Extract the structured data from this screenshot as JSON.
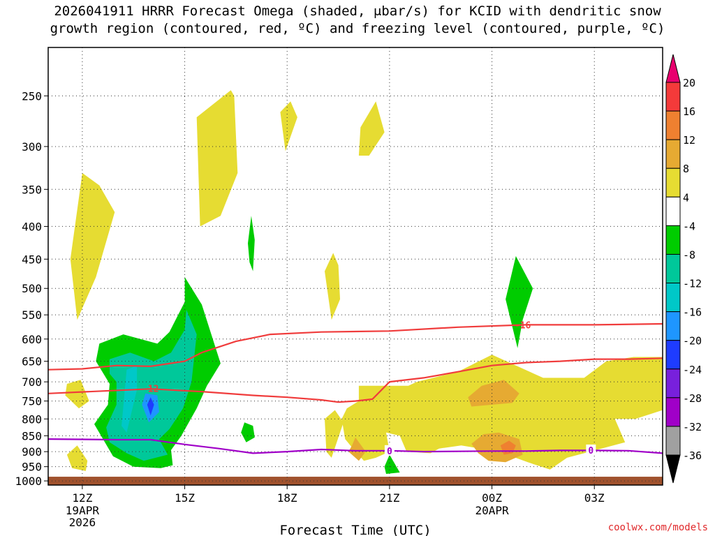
{
  "title": {
    "line1": "2026041911 HRRR Forecast Omega (shaded, μbar/s) for KCID with dendritic snow",
    "line2": "growth region (contoured, red, ºC) and freezing level (contoured, purple, ºC)"
  },
  "credit": "coolwx.com/models",
  "chart_data": {
    "type": "time-height cross section",
    "xlabel": "Forecast Time (UTC)",
    "ylabel": "",
    "x_ticks": [
      {
        "label": "12Z",
        "sub": [
          "19APR",
          "2026"
        ],
        "hours": 0
      },
      {
        "label": "15Z",
        "sub": [],
        "hours": 3
      },
      {
        "label": "18Z",
        "sub": [],
        "hours": 6
      },
      {
        "label": "21Z",
        "sub": [],
        "hours": 9
      },
      {
        "label": "00Z",
        "sub": [
          "20APR"
        ],
        "hours": 12
      },
      {
        "label": "03Z",
        "sub": [],
        "hours": 15
      }
    ],
    "xlim_hours": [
      -1,
      17
    ],
    "y_ticks": [
      250,
      300,
      350,
      400,
      450,
      500,
      550,
      600,
      650,
      700,
      750,
      800,
      850,
      900,
      950,
      1000
    ],
    "ylim_hpa": [
      1015,
      210
    ],
    "y_scale": "log-pressure",
    "grid": "dotted",
    "ground": {
      "color": "#a0522d",
      "from_hpa": 1015,
      "to_hpa": 985
    },
    "colorbar": {
      "ticks": [
        20,
        16,
        12,
        8,
        4,
        -4,
        -8,
        -12,
        -16,
        -20,
        -24,
        -28,
        -32,
        -36
      ],
      "colors": [
        "#e8006e",
        "#f43a3a",
        "#ef8030",
        "#e6aa32",
        "#e6dc32",
        "#ffffff",
        "#00cc00",
        "#00c89a",
        "#00c8c8",
        "#1e96ff",
        "#1e3cff",
        "#7820dc",
        "#a000c8",
        "#a0a0a0",
        "#000000"
      ]
    },
    "omega_regions": [
      {
        "value_band": "4..8",
        "color": "#e6dc32",
        "points": [
          [
            4.35,
            245
          ],
          [
            3.35,
            270
          ],
          [
            3.45,
            400
          ],
          [
            4.05,
            385
          ],
          [
            4.55,
            330
          ],
          [
            4.45,
            250
          ]
        ]
      },
      {
        "value_band": "4..8",
        "color": "#e6dc32",
        "points": [
          [
            0,
            330
          ],
          [
            -0.35,
            450
          ],
          [
            -0.15,
            560
          ],
          [
            0.4,
            480
          ],
          [
            0.95,
            380
          ],
          [
            0.5,
            345
          ]
        ]
      },
      {
        "value_band": "4..8",
        "color": "#e6dc32",
        "points": [
          [
            5.8,
            265
          ],
          [
            5.95,
            305
          ],
          [
            6.3,
            270
          ],
          [
            6.1,
            255
          ]
        ]
      },
      {
        "value_band": "4..8",
        "color": "#e6dc32",
        "points": [
          [
            8.1,
            310
          ],
          [
            8.15,
            280
          ],
          [
            8.6,
            255
          ],
          [
            8.85,
            285
          ],
          [
            8.4,
            310
          ]
        ]
      },
      {
        "value_band": "4..8",
        "color": "#e6dc32",
        "points": [
          [
            7.35,
            440
          ],
          [
            7.1,
            470
          ],
          [
            7.3,
            560
          ],
          [
            7.55,
            520
          ],
          [
            7.5,
            460
          ]
        ]
      },
      {
        "value_band": "4..8",
        "color": "#e6dc32",
        "points": [
          [
            -0.5,
            735
          ],
          [
            -0.45,
            705
          ],
          [
            -0.05,
            695
          ],
          [
            0.2,
            750
          ],
          [
            -0.1,
            770
          ]
        ]
      },
      {
        "value_band": "4..8",
        "color": "#e6dc32",
        "points": [
          [
            -0.45,
            910
          ],
          [
            -0.15,
            880
          ],
          [
            0.15,
            930
          ],
          [
            0.1,
            965
          ],
          [
            -0.3,
            955
          ]
        ]
      },
      {
        "value_band": "4..8",
        "color": "#e6dc32",
        "points": [
          [
            7.1,
            800
          ],
          [
            7.4,
            775
          ],
          [
            7.65,
            810
          ],
          [
            7.3,
            920
          ],
          [
            7.15,
            900
          ]
        ]
      },
      {
        "value_band": "4..8",
        "color": "#e6dc32",
        "points": [
          [
            8.1,
            710
          ],
          [
            9.55,
            710
          ],
          [
            9.8,
            700
          ],
          [
            11.0,
            675
          ],
          [
            12.0,
            635
          ],
          [
            13.5,
            690
          ],
          [
            14.7,
            690
          ],
          [
            15.35,
            650
          ],
          [
            16.15,
            640
          ],
          [
            17.0,
            640
          ],
          [
            17.0,
            775
          ],
          [
            16.2,
            800
          ],
          [
            15.6,
            800
          ],
          [
            15.9,
            870
          ],
          [
            14.2,
            920
          ],
          [
            13.7,
            960
          ],
          [
            13.05,
            935
          ],
          [
            12.2,
            900
          ],
          [
            11.1,
            880
          ],
          [
            10.45,
            890
          ],
          [
            10.2,
            905
          ],
          [
            9.5,
            900
          ],
          [
            9.3,
            850
          ],
          [
            8.9,
            840
          ],
          [
            9.0,
            900
          ],
          [
            8.6,
            920
          ],
          [
            8.25,
            930
          ],
          [
            8.0,
            900
          ],
          [
            7.7,
            860
          ],
          [
            7.6,
            800
          ],
          [
            7.75,
            770
          ],
          [
            8.1,
            750
          ]
        ]
      },
      {
        "value_band": "8..12",
        "color": "#e6aa32",
        "points": [
          [
            11.4,
            765
          ],
          [
            11.3,
            740
          ],
          [
            11.7,
            710
          ],
          [
            12.35,
            695
          ],
          [
            12.8,
            730
          ],
          [
            12.6,
            755
          ],
          [
            12.0,
            760
          ]
        ]
      },
      {
        "value_band": "8..12",
        "color": "#e6aa32",
        "points": [
          [
            7.8,
            900
          ],
          [
            7.9,
            880
          ],
          [
            8.0,
            855
          ],
          [
            8.3,
            900
          ],
          [
            8.1,
            930
          ]
        ]
      },
      {
        "value_band": "8..12",
        "color": "#e6aa32",
        "points": [
          [
            11.4,
            875
          ],
          [
            11.75,
            845
          ],
          [
            12.2,
            840
          ],
          [
            12.8,
            860
          ],
          [
            12.9,
            910
          ],
          [
            12.4,
            935
          ],
          [
            11.9,
            930
          ],
          [
            11.6,
            905
          ]
        ]
      },
      {
        "value_band": "12..16",
        "color": "#ef8030",
        "points": [
          [
            12.25,
            880
          ],
          [
            12.5,
            865
          ],
          [
            12.7,
            880
          ],
          [
            12.6,
            905
          ],
          [
            12.35,
            910
          ]
        ]
      },
      {
        "value_band": "-4..-8",
        "color": "#00cc00",
        "points": [
          [
            4.95,
            385
          ],
          [
            5.05,
            420
          ],
          [
            5.0,
            470
          ],
          [
            4.9,
            455
          ],
          [
            4.85,
            425
          ]
        ]
      },
      {
        "value_band": "-4..-8",
        "color": "#00cc00",
        "points": [
          [
            12.7,
            445
          ],
          [
            12.4,
            520
          ],
          [
            12.75,
            620
          ],
          [
            12.9,
            560
          ],
          [
            13.2,
            500
          ]
        ]
      },
      {
        "value_band": "-4..-8",
        "color": "#00cc00",
        "points": [
          [
            4.65,
            840
          ],
          [
            4.75,
            810
          ],
          [
            5.0,
            820
          ],
          [
            5.05,
            855
          ],
          [
            4.8,
            870
          ]
        ]
      },
      {
        "value_band": "-4..-8",
        "color": "#00cc00",
        "points": [
          [
            8.9,
            975
          ],
          [
            8.85,
            950
          ],
          [
            9.0,
            910
          ],
          [
            9.3,
            970
          ]
        ]
      },
      {
        "value_band": "-4..-8",
        "color": "#00cc00",
        "points": [
          [
            0.35,
            815
          ],
          [
            0.75,
            760
          ],
          [
            0.8,
            705
          ],
          [
            0.4,
            650
          ],
          [
            0.5,
            610
          ],
          [
            1.2,
            590
          ],
          [
            2.2,
            610
          ],
          [
            2.55,
            585
          ],
          [
            3.0,
            525
          ],
          [
            3.0,
            480
          ],
          [
            3.5,
            530
          ],
          [
            4.05,
            655
          ],
          [
            3.65,
            710
          ],
          [
            3.35,
            770
          ],
          [
            2.9,
            850
          ],
          [
            2.6,
            895
          ],
          [
            2.65,
            945
          ],
          [
            2.3,
            955
          ],
          [
            1.5,
            950
          ],
          [
            0.9,
            915
          ]
        ]
      },
      {
        "value_band": "-8..-12",
        "color": "#00c89a",
        "points": [
          [
            0.7,
            825
          ],
          [
            1.0,
            760
          ],
          [
            1.0,
            700
          ],
          [
            0.8,
            680
          ],
          [
            0.8,
            645
          ],
          [
            1.4,
            630
          ],
          [
            2.1,
            650
          ],
          [
            2.6,
            630
          ],
          [
            3.0,
            580
          ],
          [
            3.05,
            540
          ],
          [
            3.35,
            590
          ],
          [
            3.2,
            700
          ],
          [
            2.95,
            770
          ],
          [
            2.55,
            830
          ],
          [
            2.25,
            860
          ],
          [
            2.5,
            910
          ],
          [
            1.8,
            930
          ],
          [
            1.3,
            905
          ],
          [
            0.8,
            870
          ]
        ]
      },
      {
        "value_band": "-12..-16",
        "color": "#00c8c8",
        "points": [
          [
            1.3,
            670
          ],
          [
            1.6,
            660
          ],
          [
            1.6,
            720
          ],
          [
            1.3,
            840
          ],
          [
            1.15,
            820
          ]
        ]
      },
      {
        "value_band": "-16..-20",
        "color": "#1e96ff",
        "points": [
          [
            1.75,
            760
          ],
          [
            1.85,
            730
          ],
          [
            2.2,
            735
          ],
          [
            2.25,
            780
          ],
          [
            1.95,
            810
          ]
        ]
      },
      {
        "value_band": "-20..-24",
        "color": "#1e3cff",
        "points": [
          [
            1.9,
            760
          ],
          [
            2.0,
            740
          ],
          [
            2.1,
            760
          ],
          [
            2.0,
            790
          ]
        ]
      }
    ],
    "red_contours": [
      {
        "label": "-12",
        "label_at": [
          2.0,
          717
        ],
        "points": [
          [
            -1,
            730
          ],
          [
            1.5,
            720
          ],
          [
            2,
            718
          ],
          [
            3.5,
            725
          ],
          [
            5,
            735
          ],
          [
            6,
            740
          ],
          [
            7,
            747
          ],
          [
            7.5,
            753
          ],
          [
            8,
            750
          ],
          [
            8.5,
            745
          ],
          [
            9.0,
            700
          ],
          [
            10,
            690
          ],
          [
            11,
            675
          ],
          [
            12,
            660
          ],
          [
            13,
            653
          ],
          [
            14,
            650
          ],
          [
            15,
            645
          ],
          [
            16,
            645
          ],
          [
            17,
            643
          ]
        ]
      },
      {
        "label": "-16",
        "label_at": [
          12.9,
          570
        ],
        "points": [
          [
            -1,
            670
          ],
          [
            0,
            668
          ],
          [
            1,
            660
          ],
          [
            2,
            662
          ],
          [
            3,
            650
          ],
          [
            3.5,
            630
          ],
          [
            4.5,
            605
          ],
          [
            5.5,
            590
          ],
          [
            7,
            585
          ],
          [
            9,
            583
          ],
          [
            11,
            575
          ],
          [
            13,
            570
          ],
          [
            15,
            570
          ],
          [
            17,
            568
          ]
        ]
      }
    ],
    "purple_contour": {
      "label": "0",
      "label_at": [
        [
          9.0,
          897
        ],
        [
          14.9,
          895
        ]
      ],
      "points": [
        [
          -1,
          860
        ],
        [
          1,
          862
        ],
        [
          2,
          862
        ],
        [
          3,
          877
        ],
        [
          4,
          890
        ],
        [
          5,
          905
        ],
        [
          6,
          900
        ],
        [
          7,
          893
        ],
        [
          8,
          897
        ],
        [
          9,
          897
        ],
        [
          10,
          900
        ],
        [
          11,
          899
        ],
        [
          12,
          898
        ],
        [
          13,
          898
        ],
        [
          14,
          896
        ],
        [
          15,
          896
        ],
        [
          16,
          897
        ],
        [
          17,
          905
        ]
      ]
    }
  }
}
